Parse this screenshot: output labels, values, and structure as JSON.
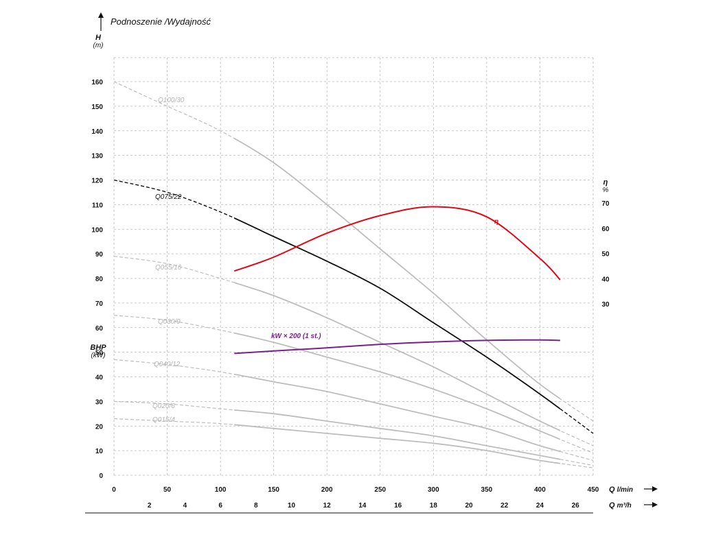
{
  "chart_data": {
    "type": "line",
    "title": "Podnoszenie /Wydajność",
    "y_label": "H",
    "y_unit": "(m)",
    "bhp_label": "BHP",
    "bhp_unit": "(kW)",
    "eta_label": "η",
    "eta_unit": "%",
    "x_label": "Q",
    "x_unit": "l/min",
    "x2_label": "Q",
    "x2_unit": "m³/h",
    "xlim": [
      0,
      450
    ],
    "ylim": [
      0,
      160
    ],
    "eta_lim": [
      30,
      70
    ],
    "grid": true,
    "x_ticks": [
      0,
      50,
      100,
      150,
      200,
      250,
      300,
      350,
      400,
      450
    ],
    "y_ticks": [
      0,
      10,
      20,
      30,
      40,
      50,
      60,
      70,
      80,
      90,
      100,
      110,
      120,
      130,
      140,
      150,
      160
    ],
    "eta_ticks": [
      30,
      40,
      50,
      60,
      70
    ],
    "x2_ticks": [
      2,
      4,
      6,
      8,
      10,
      12,
      14,
      16,
      18,
      20,
      22,
      24,
      26
    ],
    "series": [
      {
        "name": "Q100/30",
        "color": "#bdbdbd",
        "x": [
          0,
          50,
          100,
          150,
          200,
          250,
          300,
          350,
          400,
          450
        ],
        "y": [
          160,
          150,
          140,
          127,
          110,
          92,
          74,
          55,
          37,
          22
        ]
      },
      {
        "name": "Q075/22",
        "color": "#111111",
        "x": [
          0,
          50,
          100,
          150,
          200,
          250,
          300,
          350,
          400,
          450
        ],
        "y": [
          120,
          115,
          107,
          97,
          87,
          76,
          62,
          48,
          33,
          17
        ]
      },
      {
        "name": "Q055/16",
        "color": "#bdbdbd",
        "x": [
          0,
          50,
          100,
          150,
          200,
          250,
          300,
          350,
          400,
          450
        ],
        "y": [
          89,
          86,
          80,
          73,
          64,
          54,
          44,
          33,
          22,
          12
        ]
      },
      {
        "name": "Q030/9",
        "color": "#bdbdbd",
        "x": [
          0,
          50,
          100,
          150,
          200,
          250,
          300,
          350,
          400,
          450
        ],
        "y": [
          65,
          63,
          59,
          54,
          48,
          42,
          35,
          27,
          18,
          9
        ]
      },
      {
        "name": "Q040/12",
        "color": "#bdbdbd",
        "x": [
          0,
          50,
          100,
          150,
          200,
          250,
          300,
          350,
          400,
          450
        ],
        "y": [
          47,
          45,
          42,
          38,
          34,
          29,
          24,
          19,
          12,
          6
        ]
      },
      {
        "name": "Q020/6",
        "color": "#bdbdbd",
        "x": [
          0,
          50,
          100,
          150,
          200,
          250,
          300,
          350,
          400,
          450
        ],
        "y": [
          30,
          29,
          27,
          25,
          22,
          19,
          16,
          12,
          8,
          4
        ]
      },
      {
        "name": "Q015/4",
        "color": "#bdbdbd",
        "x": [
          0,
          50,
          100,
          150,
          200,
          250,
          300,
          350,
          400,
          450
        ],
        "y": [
          23,
          22,
          21,
          19,
          17,
          15,
          13,
          10,
          6,
          3
        ]
      },
      {
        "name": "η",
        "color": "#e30613",
        "axis": "eta",
        "x": [
          113,
          150,
          200,
          250,
          300,
          350,
          400,
          419
        ],
        "y": [
          43,
          48.5,
          58,
          65,
          68.5,
          64.5,
          48,
          39.5
        ]
      },
      {
        "name": "kW × 200 (1 st.)",
        "color": "#7a1f8f",
        "x": [
          113,
          150,
          200,
          250,
          300,
          350,
          400,
          419
        ],
        "y": [
          49.5,
          50.5,
          51.8,
          53.2,
          54.2,
          54.8,
          55.0,
          54.8
        ]
      }
    ]
  }
}
